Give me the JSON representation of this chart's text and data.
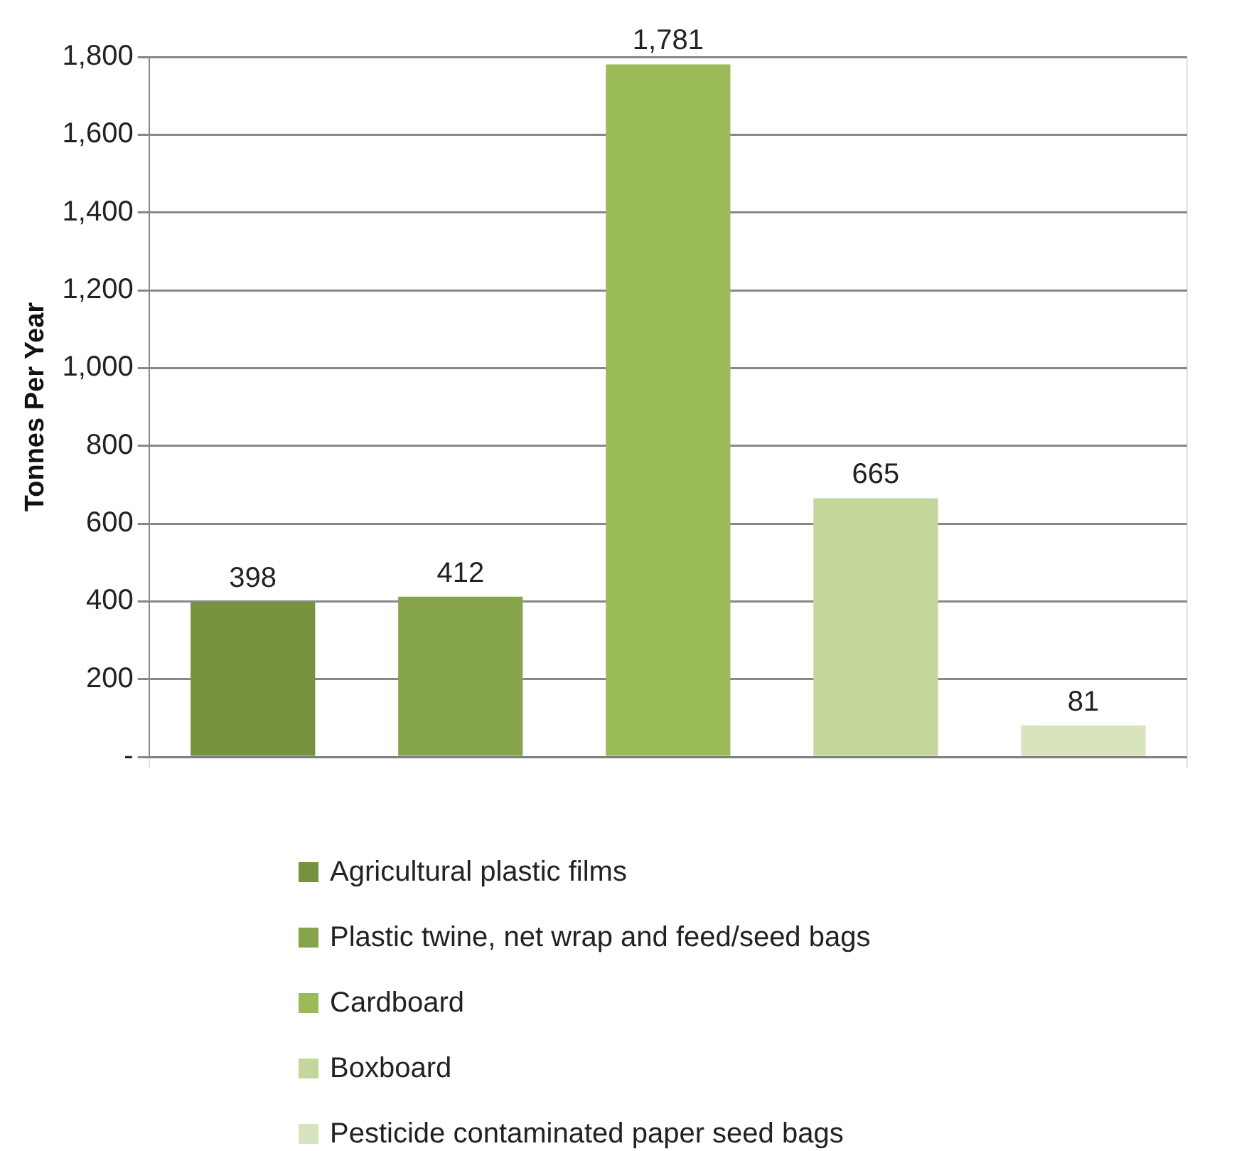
{
  "chart_data": {
    "type": "bar",
    "ylabel": "Tonnes Per Year",
    "categories": [
      null
    ],
    "series": [
      {
        "name": "Agricultural plastic films",
        "color": "#76923c",
        "values": [
          398
        ]
      },
      {
        "name": "Plastic twine, net wrap and feed/seed bags",
        "color": "#86a44a",
        "values": [
          412
        ]
      },
      {
        "name": "Cardboard",
        "color": "#9bbb59",
        "values": [
          1781
        ]
      },
      {
        "name": "Boxboard",
        "color": "#c3d69b",
        "values": [
          665
        ]
      },
      {
        "name": "Pesticide contaminated paper seed bags",
        "color": "#d7e4bd",
        "values": [
          81
        ]
      }
    ],
    "value_labels": [
      "398",
      "412",
      "1,781",
      "665",
      "81"
    ],
    "ylim": [
      0,
      1800
    ],
    "yticks": [
      {
        "value": 0,
        "label": "-"
      },
      200,
      400,
      600,
      800,
      {
        "value": 1000,
        "label": "1,000"
      },
      {
        "value": 1200,
        "label": "1,200"
      },
      {
        "value": 1400,
        "label": "1,400"
      },
      {
        "value": 1600,
        "label": "1,600"
      },
      {
        "value": 1800,
        "label": "1,800"
      }
    ],
    "grid": true,
    "legend": "bottom"
  }
}
